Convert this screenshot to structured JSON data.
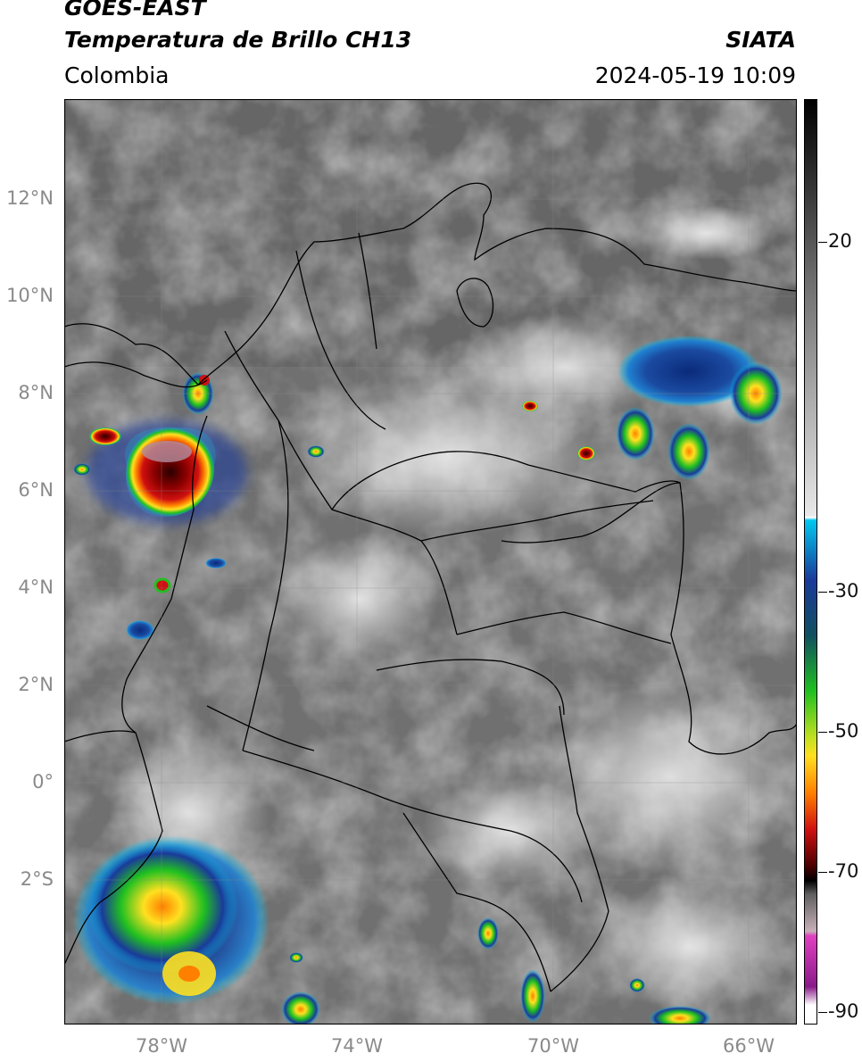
{
  "header": {
    "satellite": "GOES-EAST",
    "product": "Temperatura de Brillo CH13",
    "region": "Colombia",
    "institution": "SIATA",
    "datetime": "2024-05-19 10:09"
  },
  "lat_labels": [
    "12°N",
    "10°N",
    "8°N",
    "6°N",
    "4°N",
    "2°N",
    "0°",
    "2°S"
  ],
  "lon_labels": [
    "78°W",
    "74°W",
    "70°W",
    "66°W"
  ],
  "colorbar": {
    "labels": [
      "20",
      "-30",
      "-50",
      "-70",
      "-90"
    ],
    "colors": {
      "warm_top": "#000000",
      "gray_mid": "#9a9a9a",
      "white": "#ffffff",
      "cyan": "#00c8f0",
      "blue": "#1a3a9a",
      "green": "#20c020",
      "yellow": "#ffe020",
      "orange": "#ff8000",
      "red": "#d01010",
      "dark_red": "#4a0000",
      "magenta": "#e040c0",
      "purple": "#8a1a8a"
    }
  }
}
